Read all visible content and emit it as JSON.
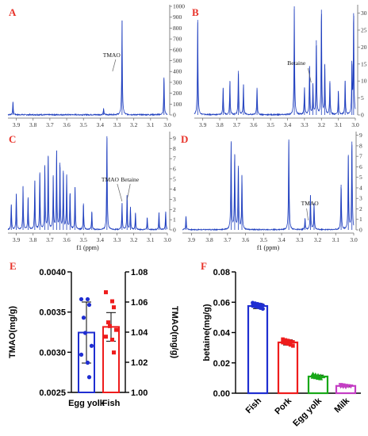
{
  "chart_data": [
    {
      "panel": "A",
      "type": "line",
      "xaxis": {
        "range": [
          3.0,
          3.95
        ],
        "ticks": [
          3.9,
          3.8,
          3.7,
          3.6,
          3.5,
          3.4,
          3.3,
          3.2,
          3.1,
          3.0
        ]
      },
      "yaxis": {
        "side": "right",
        "range": [
          0,
          1000
        ],
        "ticks": [
          0,
          100,
          200,
          300,
          400,
          500,
          600,
          700,
          800,
          900,
          1000
        ]
      },
      "peaks": [
        [
          3.92,
          115
        ],
        [
          3.38,
          55
        ],
        [
          3.27,
          870
        ],
        [
          3.02,
          345
        ]
      ],
      "annotations": [
        {
          "text": "TMAO",
          "at": 3.27
        }
      ]
    },
    {
      "panel": "B",
      "type": "line",
      "xaxis": {
        "range": [
          3.0,
          3.95
        ],
        "ticks": [
          3.9,
          3.8,
          3.7,
          3.6,
          3.5,
          3.4,
          3.3,
          3.2,
          3.1,
          3.0
        ]
      },
      "yaxis": {
        "side": "right",
        "range": [
          0,
          32
        ],
        "ticks": [
          0,
          5,
          10,
          15,
          20,
          25,
          30
        ]
      },
      "peaks": [
        [
          3.93,
          28
        ],
        [
          3.78,
          8
        ],
        [
          3.74,
          10
        ],
        [
          3.69,
          13
        ],
        [
          3.66,
          9
        ],
        [
          3.58,
          8
        ],
        [
          3.36,
          32
        ],
        [
          3.3,
          8
        ],
        [
          3.27,
          14
        ],
        [
          3.25,
          9
        ],
        [
          3.23,
          22
        ],
        [
          3.2,
          31
        ],
        [
          3.18,
          15
        ],
        [
          3.15,
          10
        ],
        [
          3.1,
          7
        ],
        [
          3.06,
          10
        ],
        [
          3.02,
          15
        ],
        [
          3.01,
          30
        ]
      ],
      "annotations": [
        {
          "text": "Betaine",
          "at": 3.27
        }
      ]
    },
    {
      "panel": "C",
      "type": "line",
      "xaxis": {
        "range": [
          3.0,
          3.95
        ],
        "ticks": [
          3.9,
          3.8,
          3.7,
          3.6,
          3.5,
          3.4,
          3.3,
          3.2,
          3.1,
          3.0
        ],
        "label": "f1 (ppm)"
      },
      "yaxis": {
        "side": "right",
        "range": [
          0,
          9.5
        ],
        "ticks": [
          0,
          1,
          2,
          3,
          4,
          5,
          6,
          7,
          8,
          9
        ]
      },
      "peaks": [
        [
          3.93,
          2.5
        ],
        [
          3.9,
          3.5
        ],
        [
          3.86,
          4.3
        ],
        [
          3.83,
          3.2
        ],
        [
          3.79,
          4.8
        ],
        [
          3.76,
          5.5
        ],
        [
          3.73,
          6.2
        ],
        [
          3.71,
          7.2
        ],
        [
          3.68,
          5.2
        ],
        [
          3.66,
          7.8
        ],
        [
          3.64,
          6.6
        ],
        [
          3.62,
          5.6
        ],
        [
          3.6,
          5.3
        ],
        [
          3.58,
          3.6
        ],
        [
          3.55,
          4.2
        ],
        [
          3.5,
          2.6
        ],
        [
          3.45,
          1.8
        ],
        [
          3.36,
          9.2
        ],
        [
          3.27,
          2.6
        ],
        [
          3.24,
          3.4
        ],
        [
          3.22,
          2.2
        ],
        [
          3.19,
          1.6
        ],
        [
          3.12,
          1.2
        ],
        [
          3.05,
          1.7
        ],
        [
          3.01,
          1.8
        ]
      ],
      "annotations": [
        {
          "text": "TMAO",
          "at": 3.27
        },
        {
          "text": "Betaine",
          "at": 3.24
        }
      ]
    },
    {
      "panel": "D",
      "type": "line",
      "xaxis": {
        "range": [
          3.0,
          3.95
        ],
        "ticks": [
          3.9,
          3.8,
          3.7,
          3.6,
          3.5,
          3.4,
          3.3,
          3.2,
          3.1,
          3.0
        ],
        "label": "f1 (ppm)"
      },
      "yaxis": {
        "side": "right",
        "range": [
          0,
          9.2
        ],
        "ticks": [
          0,
          1,
          2,
          3,
          4,
          5,
          6,
          7,
          8,
          9
        ]
      },
      "peaks": [
        [
          3.93,
          1.3
        ],
        [
          3.68,
          8.3
        ],
        [
          3.66,
          7.2
        ],
        [
          3.64,
          6.1
        ],
        [
          3.62,
          5.1
        ],
        [
          3.36,
          8.6
        ],
        [
          3.27,
          1.1
        ],
        [
          3.24,
          3.3
        ],
        [
          3.22,
          2.5
        ],
        [
          3.07,
          4.3
        ],
        [
          3.03,
          7.0
        ],
        [
          3.01,
          8.4
        ]
      ],
      "annotations": [
        {
          "text": "TMAO",
          "at": 3.27
        }
      ]
    },
    {
      "panel": "E",
      "type": "bar",
      "categories": [
        "Egg yolk",
        "Fish"
      ],
      "ylabel": "TMAO(mg/g)",
      "ylim": [
        0.0025,
        0.004
      ],
      "yticks": [
        "0.0025",
        "0.0030",
        "0.0035",
        "0.0040"
      ],
      "y2label": "TMAO(mg/g)",
      "y2lim": [
        1.0,
        1.08
      ],
      "y2ticks": [
        "1.00",
        "1.02",
        "1.04",
        "1.06",
        "1.08"
      ],
      "series": [
        {
          "category": "Egg yolk",
          "axis": "left",
          "mean": 0.003245,
          "sd": 0.00038,
          "color": "#1f2ed1",
          "points": [
            0.00366,
            0.00366,
            0.00359,
            0.00343,
            0.00324,
            0.00308,
            0.00297,
            0.00287,
            0.00269
          ]
        },
        {
          "category": "Fish",
          "axis": "right",
          "mean": 1.0435,
          "sd": 0.0095,
          "color": "#ee1c1c",
          "points": [
            1.0665,
            1.0605,
            1.0565,
            1.0465,
            1.044,
            1.0415,
            1.037,
            1.035,
            1.0265
          ]
        }
      ]
    },
    {
      "panel": "F",
      "type": "bar",
      "categories": [
        "Fish",
        "Pork",
        "Egg yolk",
        "Milk"
      ],
      "ylabel": "betaine(mg/g)",
      "ylim": [
        0,
        0.08
      ],
      "yticks": [
        "0.00",
        "0.02",
        "0.04",
        "0.06",
        "0.08"
      ],
      "series": [
        {
          "category": "Fish",
          "mean": 0.0575,
          "sd": 0.0017,
          "color": "#1f2ed1",
          "points": [
            0.0596,
            0.0592,
            0.0588,
            0.0584,
            0.058,
            0.0576,
            0.0572,
            0.0568,
            0.0562,
            0.0556
          ]
        },
        {
          "category": "Pork",
          "mean": 0.0335,
          "sd": 0.0017,
          "color": "#ee1c1c",
          "points": [
            0.0356,
            0.0351,
            0.0347,
            0.0342,
            0.0338,
            0.0334,
            0.033,
            0.0325,
            0.0319,
            0.0312
          ]
        },
        {
          "category": "Egg yolk",
          "mean": 0.011,
          "sd": 0.0009,
          "color": "#18a818",
          "points": [
            0.0126,
            0.0121,
            0.0117,
            0.0113,
            0.011,
            0.0107,
            0.0104,
            0.01,
            0.0097
          ]
        },
        {
          "category": "Milk",
          "mean": 0.0048,
          "sd": 0.0006,
          "color": "#c43ec4",
          "points": [
            0.0056,
            0.0053,
            0.005,
            0.0048,
            0.0046,
            0.0045,
            0.0043,
            0.0041
          ]
        }
      ]
    }
  ]
}
